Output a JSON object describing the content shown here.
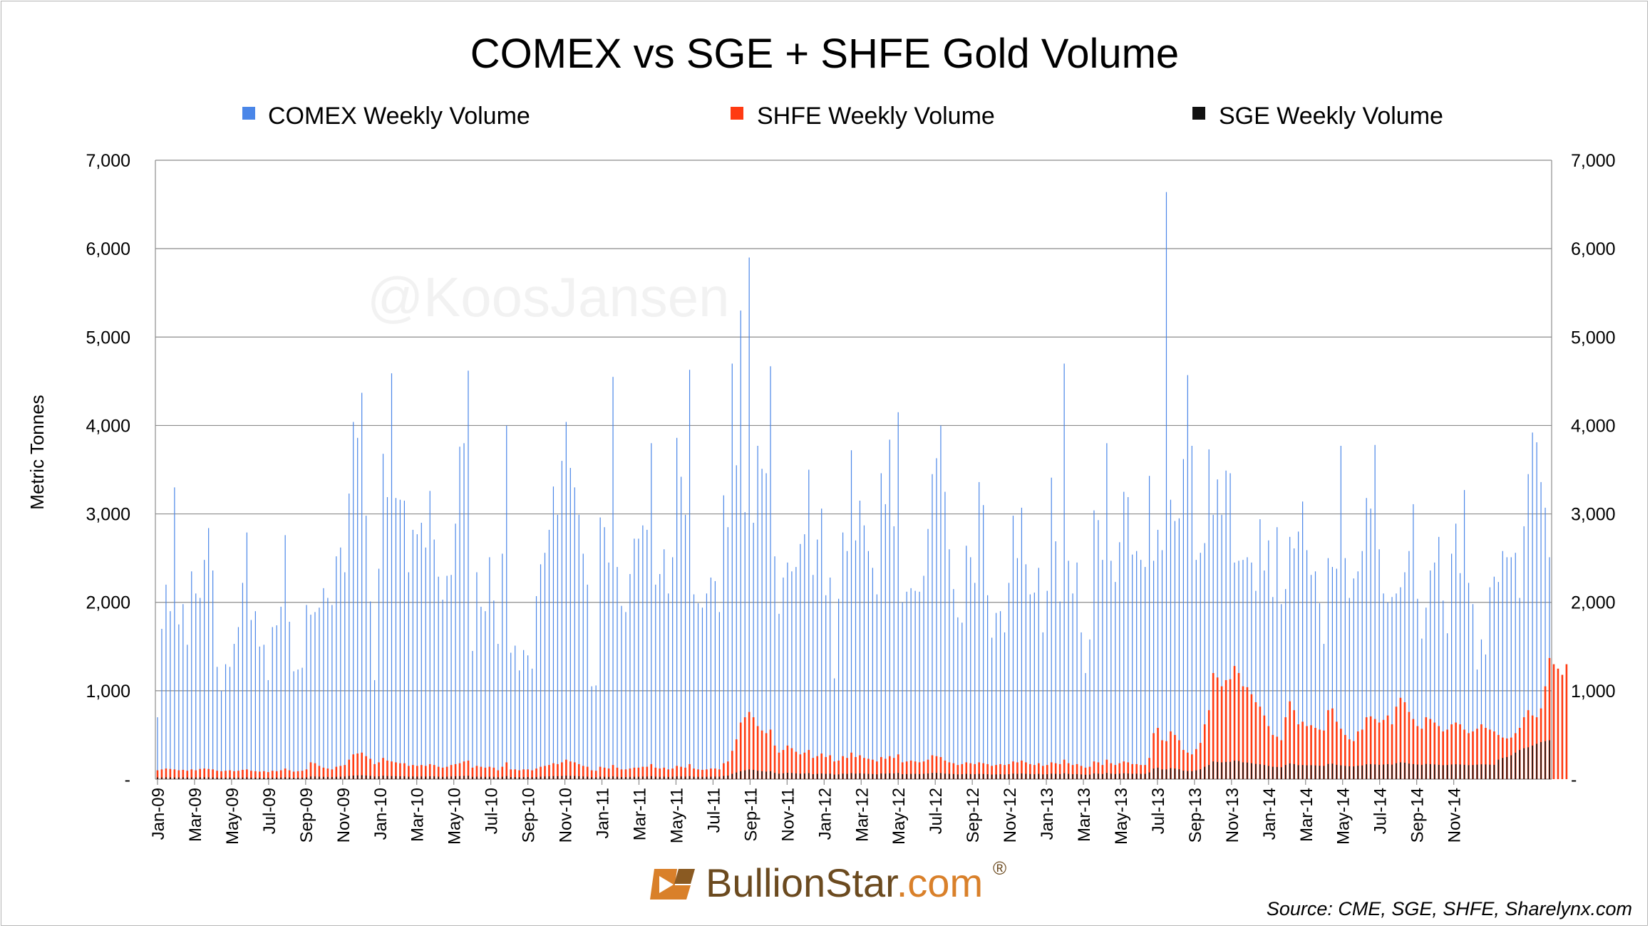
{
  "chart_data": {
    "type": "bar",
    "title": "COMEX vs SGE + SHFE Gold Volume",
    "ylabel": "Metric Tonnes",
    "xlabel": "",
    "ylim": [
      0,
      7000
    ],
    "yticks": [
      0,
      1000,
      2000,
      3000,
      4000,
      5000,
      6000,
      7000
    ],
    "ytick_labels": [
      "-",
      "1,000",
      "2,000",
      "3,000",
      "4,000",
      "5,000",
      "6,000",
      "7,000"
    ],
    "grid": true,
    "legend_position": "top",
    "xtick_labels": [
      "Jan-09",
      "Mar-09",
      "May-09",
      "Jul-09",
      "Sep-09",
      "Nov-09",
      "Jan-10",
      "Mar-10",
      "May-10",
      "Jul-10",
      "Sep-10",
      "Nov-10",
      "Jan-11",
      "Mar-11",
      "May-11",
      "Jul-11",
      "Sep-11",
      "Nov-11",
      "Jan-12",
      "Mar-12",
      "May-12",
      "Jul-12",
      "Sep-12",
      "Nov-12",
      "Jan-13",
      "Mar-13",
      "May-13",
      "Jul-13",
      "Sep-13",
      "Nov-13",
      "Jan-14",
      "Mar-14",
      "May-14",
      "Jul-14",
      "Sep-14",
      "Nov-14"
    ],
    "weeks_per_tick": 8.7,
    "series": [
      {
        "name": "COMEX Weekly Volume",
        "color": "#4a86e8",
        "values": [
          700,
          1700,
          2200,
          1900,
          3300,
          1750,
          1980,
          1520,
          2350,
          2100,
          2050,
          2480,
          2840,
          2360,
          1270,
          1000,
          1300,
          1270,
          1530,
          1720,
          2220,
          2790,
          1800,
          1900,
          1500,
          1520,
          1120,
          1720,
          1740,
          1950,
          2760,
          1780,
          1220,
          1240,
          1260,
          1970,
          1860,
          1890,
          1940,
          2160,
          2050,
          1970,
          2520,
          2620,
          2340,
          3230,
          4040,
          3860,
          4370,
          2980,
          2010,
          1120,
          2380,
          3680,
          3190,
          4590,
          3180,
          3160,
          3150,
          2340,
          2820,
          2770,
          2900,
          2620,
          3260,
          2710,
          2290,
          2030,
          2300,
          2310,
          2890,
          3760,
          3800,
          4620,
          1450,
          2340,
          1950,
          1900,
          2510,
          2020,
          1530,
          2550,
          4000,
          1430,
          1510,
          1230,
          1460,
          1400,
          1250,
          2070,
          2430,
          2560,
          2820,
          3310,
          2990,
          3600,
          4040,
          3520,
          3300,
          2990,
          2550,
          2200,
          1050,
          1060,
          2960,
          2850,
          2450,
          4550,
          2400,
          1960,
          1890,
          2320,
          2720,
          2720,
          2870,
          2820,
          3800,
          2200,
          2320,
          2600,
          2100,
          2510,
          3860,
          3420,
          2990,
          4630,
          2090,
          1990,
          1940,
          2100,
          2280,
          2240,
          1890,
          3210,
          2850,
          4700,
          3550,
          5300,
          3020,
          5900,
          2900,
          3770,
          3510,
          3460,
          4670,
          2520,
          1870,
          2280,
          2450,
          2350,
          2400,
          2660,
          2770,
          3500,
          2310,
          2710,
          3060,
          2080,
          2280,
          1140,
          2040,
          2790,
          2580,
          3720,
          2700,
          3150,
          2870,
          2580,
          2390,
          2090,
          3460,
          3110,
          3840,
          2860,
          4150,
          2000,
          2120,
          2160,
          2130,
          2120,
          2300,
          2830,
          3450,
          3630,
          4000,
          3250,
          2600,
          2150,
          1830,
          1770,
          2640,
          2510,
          2220,
          3360,
          3100,
          2080,
          1600,
          1880,
          1900,
          1660,
          2220,
          2980,
          2500,
          3070,
          2430,
          2090,
          2110,
          2390,
          1660,
          2130,
          3410,
          2690,
          2010,
          4700,
          2470,
          2100,
          2450,
          1660,
          1200,
          1580,
          3040,
          2930,
          2480,
          3800,
          2470,
          2230,
          2680,
          3250,
          3190,
          2540,
          2580,
          2480,
          2400,
          3430,
          2470,
          2820,
          2590,
          6640,
          3160,
          2920,
          2950,
          3620,
          4570,
          3770,
          2480,
          2560,
          2670,
          3730,
          2990,
          3390,
          2990,
          3490,
          3460,
          2450,
          2470,
          2480,
          2510,
          2450,
          2130,
          2940,
          2360,
          2700,
          2060,
          2850,
          1980,
          2150,
          2740,
          2610,
          2800,
          3140,
          2590,
          2310,
          2350,
          1990,
          1530,
          2500,
          2400,
          2380,
          3770,
          2500,
          2050,
          2270,
          2350,
          2580,
          3180,
          3060,
          3780,
          2600,
          2100,
          2000,
          2060,
          2100,
          2170,
          2340,
          2580,
          3110,
          2040,
          1590,
          1940,
          2360,
          2450,
          2740,
          2020,
          1650,
          2550,
          2890,
          2330,
          3270,
          2220,
          1980,
          1240,
          1580,
          1410,
          2170,
          2290,
          2230,
          2580,
          2510,
          2510,
          2560,
          2050,
          2860,
          3450,
          3920,
          3810,
          3360,
          3070,
          2510
        ]
      },
      {
        "name": "SHFE Weekly Volume",
        "color": "#ff3a12",
        "values": [
          100,
          110,
          120,
          115,
          110,
          100,
          105,
          95,
          110,
          100,
          115,
          120,
          115,
          110,
          95,
          90,
          95,
          100,
          90,
          95,
          105,
          110,
          95,
          90,
          85,
          90,
          80,
          95,
          90,
          100,
          120,
          100,
          85,
          90,
          95,
          110,
          190,
          180,
          150,
          130,
          120,
          110,
          140,
          150,
          160,
          220,
          280,
          290,
          300,
          260,
          230,
          170,
          190,
          240,
          210,
          200,
          190,
          180,
          180,
          150,
          160,
          150,
          160,
          150,
          170,
          160,
          140,
          130,
          140,
          160,
          170,
          180,
          200,
          210,
          130,
          150,
          140,
          130,
          140,
          130,
          100,
          140,
          190,
          110,
          110,
          100,
          110,
          110,
          100,
          120,
          140,
          150,
          160,
          180,
          170,
          190,
          220,
          200,
          190,
          170,
          150,
          140,
          100,
          95,
          140,
          130,
          120,
          160,
          130,
          110,
          110,
          120,
          130,
          130,
          140,
          140,
          170,
          130,
          120,
          130,
          110,
          120,
          150,
          140,
          130,
          170,
          120,
          110,
          105,
          110,
          120,
          120,
          110,
          180,
          200,
          320,
          450,
          640,
          700,
          760,
          700,
          600,
          550,
          520,
          560,
          380,
          300,
          330,
          380,
          350,
          310,
          280,
          300,
          330,
          240,
          260,
          290,
          250,
          270,
          200,
          210,
          260,
          240,
          300,
          250,
          270,
          240,
          230,
          220,
          200,
          250,
          230,
          260,
          240,
          280,
          190,
          200,
          210,
          200,
          190,
          200,
          220,
          270,
          260,
          250,
          210,
          190,
          180,
          160,
          170,
          190,
          180,
          170,
          190,
          180,
          170,
          150,
          160,
          170,
          160,
          170,
          200,
          190,
          210,
          190,
          170,
          160,
          180,
          150,
          160,
          190,
          180,
          170,
          220,
          180,
          160,
          170,
          150,
          130,
          140,
          200,
          190,
          160,
          220,
          180,
          160,
          180,
          200,
          190,
          170,
          170,
          160,
          160,
          240,
          520,
          580,
          440,
          430,
          540,
          500,
          440,
          330,
          300,
          280,
          340,
          410,
          620,
          780,
          1200,
          1150,
          1050,
          1120,
          1130,
          1280,
          1200,
          1050,
          1040,
          960,
          870,
          820,
          720,
          600,
          500,
          480,
          440,
          700,
          880,
          780,
          620,
          650,
          600,
          610,
          580,
          560,
          550,
          780,
          800,
          650,
          570,
          500,
          450,
          430,
          540,
          560,
          700,
          710,
          680,
          640,
          670,
          720,
          620,
          820,
          920,
          870,
          760,
          680,
          600,
          570,
          700,
          680,
          640,
          600,
          540,
          560,
          620,
          640,
          620,
          560,
          520,
          540,
          570,
          620,
          580,
          560,
          540,
          500,
          470,
          460,
          470,
          520,
          580,
          700,
          780,
          720,
          700,
          800,
          1050,
          1370,
          1300,
          1250,
          1180,
          1300
        ]
      },
      {
        "name": "SGE Weekly Volume",
        "color": "#111111",
        "values": [
          20,
          20,
          22,
          21,
          20,
          20,
          21,
          19,
          20,
          20,
          21,
          22,
          21,
          20,
          18,
          18,
          18,
          19,
          18,
          18,
          19,
          20,
          18,
          18,
          17,
          17,
          16,
          18,
          18,
          19,
          22,
          19,
          16,
          17,
          18,
          20,
          30,
          30,
          28,
          26,
          25,
          24,
          27,
          28,
          30,
          36,
          40,
          42,
          44,
          40,
          36,
          30,
          32,
          38,
          35,
          34,
          33,
          32,
          32,
          28,
          30,
          29,
          30,
          29,
          32,
          31,
          28,
          26,
          28,
          30,
          32,
          34,
          36,
          38,
          26,
          28,
          27,
          26,
          27,
          26,
          22,
          27,
          34,
          24,
          24,
          22,
          24,
          24,
          22,
          25,
          28,
          30,
          31,
          34,
          33,
          35,
          38,
          36,
          35,
          33,
          30,
          28,
          22,
          21,
          28,
          27,
          26,
          31,
          27,
          24,
          24,
          26,
          27,
          27,
          29,
          29,
          33,
          28,
          26,
          28,
          25,
          27,
          31,
          30,
          29,
          34,
          27,
          26,
          26,
          27,
          28,
          29,
          28,
          36,
          40,
          60,
          75,
          90,
          100,
          110,
          105,
          95,
          90,
          85,
          90,
          70,
          62,
          66,
          72,
          70,
          65,
          62,
          64,
          68,
          56,
          60,
          64,
          60,
          62,
          52,
          54,
          62,
          60,
          68,
          62,
          66,
          62,
          60,
          58,
          55,
          64,
          62,
          66,
          64,
          70,
          56,
          58,
          60,
          60,
          58,
          60,
          64,
          70,
          70,
          68,
          62,
          60,
          58,
          54,
          56,
          60,
          58,
          56,
          60,
          58,
          56,
          52,
          54,
          56,
          54,
          56,
          62,
          60,
          64,
          60,
          58,
          56,
          60,
          54,
          56,
          62,
          60,
          58,
          66,
          60,
          56,
          58,
          54,
          50,
          52,
          64,
          62,
          58,
          70,
          62,
          58,
          62,
          66,
          64,
          60,
          62,
          60,
          60,
          76,
          120,
          130,
          110,
          110,
          125,
          120,
          112,
          96,
          92,
          90,
          100,
          112,
          140,
          160,
          200,
          195,
          190,
          195,
          196,
          210,
          205,
          190,
          188,
          180,
          172,
          168,
          160,
          150,
          140,
          138,
          135,
          160,
          178,
          170,
          158,
          160,
          156,
          158,
          155,
          152,
          150,
          172,
          175,
          162,
          156,
          150,
          146,
          144,
          152,
          155,
          168,
          170,
          166,
          162,
          165,
          170,
          164,
          180,
          190,
          186,
          176,
          170,
          165,
          162,
          172,
          170,
          166,
          162,
          158,
          160,
          166,
          168,
          166,
          162,
          158,
          160,
          164,
          168,
          166,
          164,
          162,
          220,
          240,
          250,
          270,
          300,
          330,
          350,
          360,
          380,
          400,
          420,
          430,
          440
        ]
      }
    ]
  },
  "legend": [
    {
      "label": "COMEX Weekly Volume",
      "color": "#4a86e8"
    },
    {
      "label": "SHFE Weekly Volume",
      "color": "#ff3a12"
    },
    {
      "label": "SGE Weekly Volume",
      "color": "#111111"
    }
  ],
  "watermark": "@KoosJansen",
  "logo": {
    "brand": "BullionStar",
    "tld": ".com",
    "reg": "®"
  },
  "source": "Source: CME, SGE, SHFE, Sharelynx.com"
}
